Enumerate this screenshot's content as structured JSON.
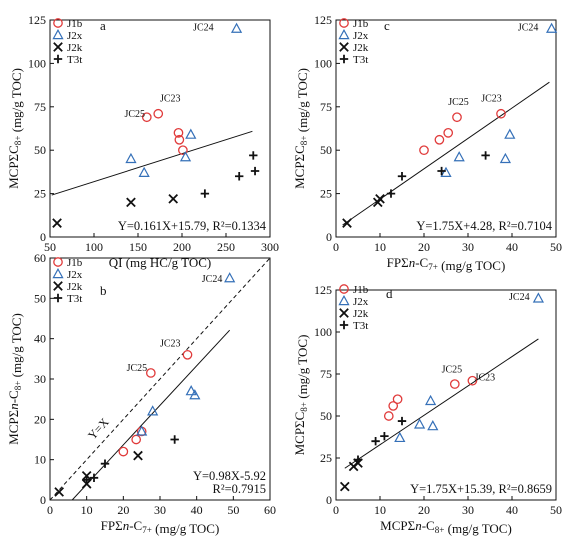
{
  "figure_title": "",
  "legend_labels": [
    "J1b",
    "J2x",
    "J2k",
    "T3t"
  ],
  "series_colors": {
    "J1b": "#e03a3a",
    "J2x": "#3570b8",
    "J2k": "#111111",
    "T3t": "#111111"
  },
  "chart_data": [
    {
      "type": "scatter",
      "panel": "a",
      "xlabel": "QI (mg HC/g TOC)",
      "ylabel": "MCPΣC8+ (mg/g TOC)",
      "xlim": [
        50,
        300
      ],
      "ylim": [
        0,
        125
      ],
      "xticks": [
        50,
        100,
        150,
        200,
        250,
        300
      ],
      "yticks": [
        0,
        25,
        50,
        75,
        100,
        125
      ],
      "legend_position": "top-left",
      "series": [
        {
          "name": "J1b",
          "marker": "circle",
          "points": [
            [
              160,
              69
            ],
            [
              173,
              71
            ],
            [
              196,
              60
            ],
            [
              197,
              56
            ],
            [
              201,
              50
            ]
          ]
        },
        {
          "name": "J2x",
          "marker": "triangle",
          "points": [
            [
              142,
              45
            ],
            [
              157,
              37
            ],
            [
              204,
              46
            ],
            [
              210,
              59
            ],
            [
              262,
              120
            ]
          ]
        },
        {
          "name": "J2k",
          "marker": "x",
          "points": [
            [
              58,
              8
            ],
            [
              142,
              20
            ],
            [
              190,
              22
            ]
          ]
        },
        {
          "name": "T3t",
          "marker": "plus",
          "points": [
            [
              226,
              25
            ],
            [
              265,
              35
            ],
            [
              281,
              47
            ],
            [
              283,
              38
            ]
          ]
        }
      ],
      "fit_line": {
        "x": [
          52,
          280
        ],
        "y": [
          24.16,
          60.87
        ],
        "style": "solid"
      },
      "annotations": [
        {
          "text": "JC24",
          "x": 236,
          "y": 119,
          "anchor": "end"
        },
        {
          "text": "JC23",
          "x": 175,
          "y": 78,
          "anchor": "start"
        },
        {
          "text": "JC25",
          "x": 158,
          "y": 69,
          "anchor": "end"
        }
      ],
      "equation": "Y=0.161X+15.79, R²=0.1334"
    },
    {
      "type": "scatter",
      "panel": "c",
      "xlabel": "FPΣn-C7+ (mg/g TOC)",
      "ylabel": "MCPΣC8+ (mg/g TOC)",
      "xlim": [
        0,
        50
      ],
      "ylim": [
        0,
        125
      ],
      "xticks": [
        0,
        10,
        20,
        30,
        40,
        50
      ],
      "yticks": [
        0,
        25,
        50,
        75,
        100,
        125
      ],
      "legend_position": "top-left",
      "series": [
        {
          "name": "J1b",
          "marker": "circle",
          "points": [
            [
              20,
              50
            ],
            [
              23.5,
              56
            ],
            [
              25.5,
              60
            ],
            [
              27.5,
              69
            ],
            [
              37.5,
              71
            ]
          ]
        },
        {
          "name": "J2x",
          "marker": "triangle",
          "points": [
            [
              25,
              37
            ],
            [
              28,
              46
            ],
            [
              38.5,
              45
            ],
            [
              39.5,
              59
            ],
            [
              49,
              120
            ]
          ]
        },
        {
          "name": "J2k",
          "marker": "x",
          "points": [
            [
              2.5,
              8
            ],
            [
              9.5,
              20
            ],
            [
              10,
              22
            ]
          ]
        },
        {
          "name": "T3t",
          "marker": "plus",
          "points": [
            [
              12.5,
              25
            ],
            [
              15,
              35
            ],
            [
              24,
              38
            ],
            [
              34,
              47
            ]
          ]
        }
      ],
      "fit_line": {
        "x": [
          1.5,
          48.5
        ],
        "y": [
          6.91,
          89.16
        ],
        "style": "solid"
      },
      "annotations": [
        {
          "text": "JC24",
          "x": 46,
          "y": 119,
          "anchor": "end"
        },
        {
          "text": "JC25",
          "x": 25.5,
          "y": 76,
          "anchor": "start"
        },
        {
          "text": "JC23",
          "x": 33,
          "y": 78,
          "anchor": "start"
        }
      ],
      "equation": "Y=1.75X+4.28, R²=0.7104"
    },
    {
      "type": "scatter",
      "panel": "b",
      "xlabel": "FPΣn-C7+ (mg/g TOC)",
      "ylabel": "MCPΣn-C8+ (mg/g TOC)",
      "xlim": [
        0,
        60
      ],
      "ylim": [
        0,
        60
      ],
      "xticks": [
        0,
        10,
        20,
        30,
        40,
        50,
        60
      ],
      "yticks": [
        0,
        10,
        20,
        30,
        40,
        50,
        60
      ],
      "legend_position": "top-left",
      "series": [
        {
          "name": "J1b",
          "marker": "circle",
          "points": [
            [
              20,
              12
            ],
            [
              23.5,
              15
            ],
            [
              25,
              17
            ],
            [
              27.5,
              31.5
            ],
            [
              37.5,
              36
            ]
          ]
        },
        {
          "name": "J2x",
          "marker": "triangle",
          "points": [
            [
              25,
              17
            ],
            [
              28,
              22
            ],
            [
              38.5,
              27
            ],
            [
              39.5,
              26
            ],
            [
              49,
              55
            ]
          ]
        },
        {
          "name": "J2k",
          "marker": "x",
          "points": [
            [
              2.5,
              2
            ],
            [
              10,
              4
            ],
            [
              10,
              6
            ],
            [
              24,
              11
            ]
          ]
        },
        {
          "name": "T3t",
          "marker": "plus",
          "points": [
            [
              10,
              5
            ],
            [
              12,
              5.5
            ],
            [
              15,
              9
            ],
            [
              34,
              15
            ]
          ]
        }
      ],
      "fit_line": {
        "x": [
          6.05,
          49
        ],
        "y": [
          0,
          42.1
        ],
        "style": "solid"
      },
      "reference_line": {
        "x": [
          0,
          60
        ],
        "y": [
          0,
          60
        ],
        "style": "dashed",
        "label": "Y=X"
      },
      "annotations": [
        {
          "text": "JC24",
          "x": 47,
          "y": 54,
          "anchor": "end"
        },
        {
          "text": "JC23",
          "x": 30,
          "y": 38,
          "anchor": "start"
        },
        {
          "text": "JC25",
          "x": 26.5,
          "y": 32,
          "anchor": "end"
        }
      ],
      "equation_lines": [
        "Y=0.98X-5.92",
        "R²=0.7915"
      ]
    },
    {
      "type": "scatter",
      "panel": "d",
      "xlabel": "MCPΣn-C8+ (mg/g TOC)",
      "ylabel": "MCPΣC8+ (mg/g TOC)",
      "xlim": [
        0,
        50
      ],
      "ylim": [
        0,
        125
      ],
      "xticks": [
        0,
        10,
        20,
        30,
        40,
        50
      ],
      "yticks": [
        0,
        25,
        50,
        75,
        100,
        125
      ],
      "legend_position": "top-left",
      "series": [
        {
          "name": "J1b",
          "marker": "circle",
          "points": [
            [
              12,
              50
            ],
            [
              13,
              56
            ],
            [
              14,
              60
            ],
            [
              27,
              69
            ],
            [
              31,
              71
            ]
          ]
        },
        {
          "name": "J2x",
          "marker": "triangle",
          "points": [
            [
              14.5,
              37
            ],
            [
              19,
              45
            ],
            [
              21.5,
              59
            ],
            [
              22,
              44
            ],
            [
              46,
              120
            ]
          ]
        },
        {
          "name": "J2k",
          "marker": "x",
          "points": [
            [
              2,
              8
            ],
            [
              4,
              20
            ],
            [
              5,
              22
            ]
          ]
        },
        {
          "name": "T3t",
          "marker": "plus",
          "points": [
            [
              5,
              24
            ],
            [
              9,
              35
            ],
            [
              11,
              38
            ],
            [
              15,
              47
            ]
          ]
        }
      ],
      "fit_line": {
        "x": [
          2,
          46
        ],
        "y": [
          18.89,
          95.89
        ],
        "style": "solid"
      },
      "annotations": [
        {
          "text": "JC24",
          "x": 44,
          "y": 119,
          "anchor": "end"
        },
        {
          "text": "JC25",
          "x": 24,
          "y": 76,
          "anchor": "start"
        },
        {
          "text": "JC23",
          "x": 31.5,
          "y": 71,
          "anchor": "start"
        }
      ],
      "equation": "Y=1.75X+15.39, R²=0.8659"
    }
  ]
}
